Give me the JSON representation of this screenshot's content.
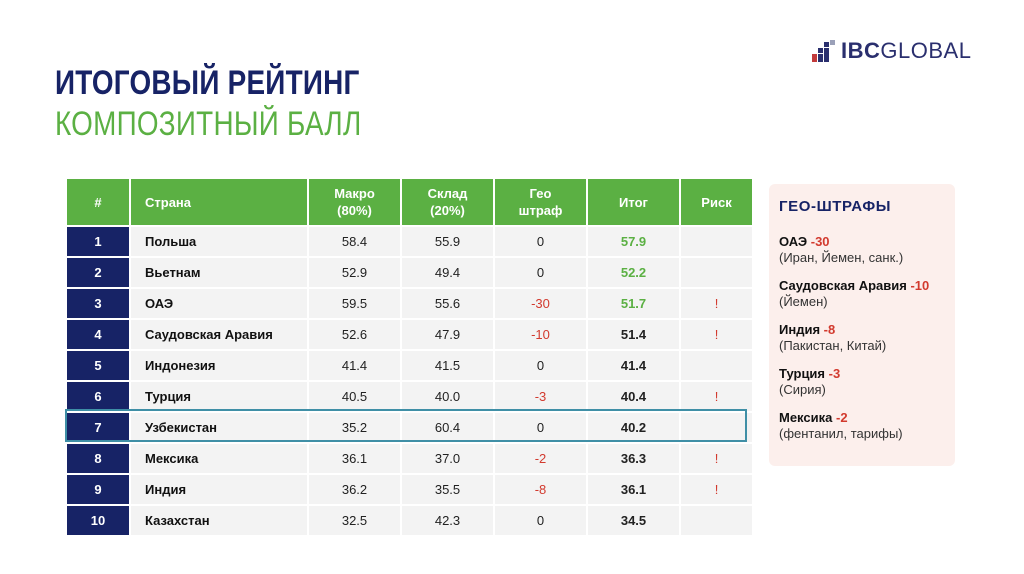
{
  "logo": {
    "bold": "IBC",
    "light": "GLOBAL"
  },
  "title": "ИТОГОВЫЙ РЕЙТИНГ",
  "subtitle": "КОМПОЗИТНЫЙ БАЛЛ",
  "table": {
    "headers": {
      "num": "#",
      "country": "Страна",
      "macro_1": "Макро",
      "macro_2": "(80%)",
      "warehouse_1": "Склад",
      "warehouse_2": "(20%)",
      "geo_1": "Гео",
      "geo_2": "штраф",
      "total": "Итог",
      "risk": "Риск"
    },
    "rows": [
      {
        "num": "1",
        "country": "Польша",
        "macro": "58.4",
        "warehouse": "55.9",
        "geo": "0",
        "total": "57.9",
        "risk": ""
      },
      {
        "num": "2",
        "country": "Вьетнам",
        "macro": "52.9",
        "warehouse": "49.4",
        "geo": "0",
        "total": "52.2",
        "risk": ""
      },
      {
        "num": "3",
        "country": "ОАЭ",
        "macro": "59.5",
        "warehouse": "55.6",
        "geo": "-30",
        "total": "51.7",
        "risk": "!"
      },
      {
        "num": "4",
        "country": "Саудовская Аравия",
        "macro": "52.6",
        "warehouse": "47.9",
        "geo": "-10",
        "total": "51.4",
        "risk": "!"
      },
      {
        "num": "5",
        "country": "Индонезия",
        "macro": "41.4",
        "warehouse": "41.5",
        "geo": "0",
        "total": "41.4",
        "risk": ""
      },
      {
        "num": "6",
        "country": "Турция",
        "macro": "40.5",
        "warehouse": "40.0",
        "geo": "-3",
        "total": "40.4",
        "risk": "!"
      },
      {
        "num": "7",
        "country": "Узбекистан",
        "macro": "35.2",
        "warehouse": "60.4",
        "geo": "0",
        "total": "40.2",
        "risk": ""
      },
      {
        "num": "8",
        "country": "Мексика",
        "macro": "36.1",
        "warehouse": "37.0",
        "geo": "-2",
        "total": "36.3",
        "risk": "!"
      },
      {
        "num": "9",
        "country": "Индия",
        "macro": "36.2",
        "warehouse": "35.5",
        "geo": "-8",
        "total": "36.1",
        "risk": "!"
      },
      {
        "num": "10",
        "country": "Казахстан",
        "macro": "32.5",
        "warehouse": "42.3",
        "geo": "0",
        "total": "34.5",
        "risk": ""
      }
    ]
  },
  "panel": {
    "title": "ГЕО-ШТРАФЫ",
    "items": [
      {
        "country": "ОАЭ",
        "value": "-30",
        "reason": "(Иран, Йемен, санк.)"
      },
      {
        "country": "Саудовская Аравия",
        "value": "-10",
        "reason": "(Йемен)"
      },
      {
        "country": "Индия",
        "value": "-8",
        "reason": "(Пакистан, Китай)"
      },
      {
        "country": "Турция",
        "value": "-3",
        "reason": "(Сирия)"
      },
      {
        "country": "Мексика",
        "value": "-2",
        "reason": "(фентанил, тарифы)"
      }
    ]
  },
  "colors": {
    "navy": "#172366",
    "green": "#5bb043",
    "red": "#d23a2e",
    "highlight": "#3f8fa6",
    "panel_bg": "#fcefec"
  }
}
